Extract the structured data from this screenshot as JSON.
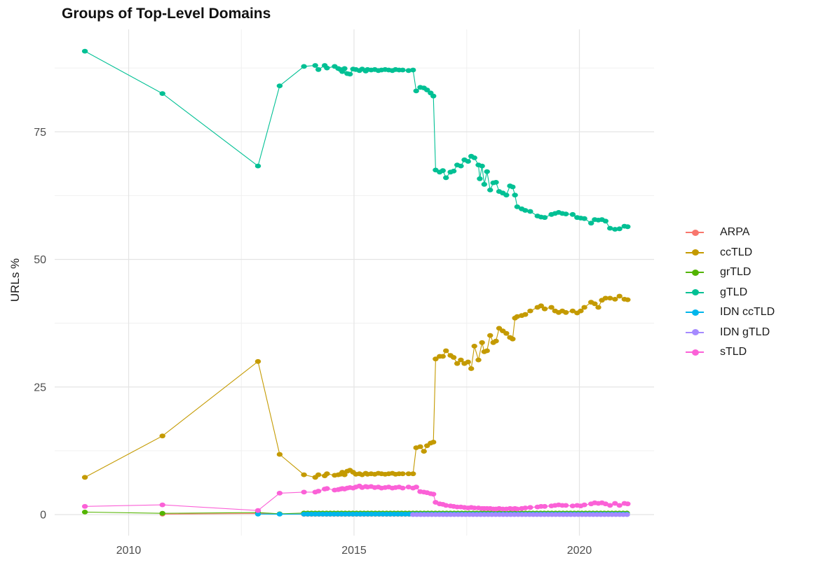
{
  "chart_data": {
    "type": "scatter",
    "title": "Groups of Top-Level Domains",
    "xlabel": "",
    "ylabel": "URLs %",
    "grid": true,
    "legend_position": "right",
    "xlim": [
      2008.35,
      2021.68
    ],
    "ylim": [
      -4.1,
      95.4
    ],
    "x_ticks": {
      "major": [
        2010,
        2015,
        2020
      ],
      "labels": [
        "2010",
        "2015",
        "2020"
      ],
      "minor": [
        2012.5,
        2017.5
      ]
    },
    "y_ticks": {
      "major": [
        0,
        25,
        50,
        75
      ],
      "labels": [
        "0",
        "25",
        "50",
        "75"
      ],
      "minor": [
        12.5,
        37.5,
        62.5,
        87.5
      ]
    },
    "colors": {
      "major_grid": "#e4e4e4",
      "minor_grid": "#f0f0f0",
      "tick_label": "#4d4d4d",
      "title": "#111111",
      "axis_title": "#1a1a1a"
    },
    "series": [
      {
        "name": "ARPA",
        "color": "#F8766D",
        "points": [
          [
            2010.75,
            0.1
          ],
          [
            2012.87,
            0.2
          ]
        ],
        "flat": {
          "from": 2013.89,
          "to": 2021.07,
          "step": 0.0833,
          "value": 0.05
        }
      },
      {
        "name": "ccTLD",
        "color": "#C49A00",
        "points": [
          [
            2009.03,
            7.3
          ],
          [
            2010.75,
            15.4
          ],
          [
            2012.87,
            30.0
          ],
          [
            2013.35,
            11.8
          ],
          [
            2013.89,
            7.8
          ],
          [
            2014.14,
            7.3
          ],
          [
            2014.21,
            7.8
          ],
          [
            2014.35,
            7.6
          ],
          [
            2014.4,
            8.0
          ],
          [
            2014.57,
            7.7
          ],
          [
            2014.65,
            7.8
          ],
          [
            2014.7,
            7.9
          ],
          [
            2014.74,
            8.3
          ],
          [
            2014.79,
            7.8
          ],
          [
            2014.85,
            8.5
          ],
          [
            2014.91,
            8.7
          ],
          [
            2014.98,
            8.3
          ],
          [
            2015.04,
            7.9
          ],
          [
            2015.12,
            8.0
          ],
          [
            2015.18,
            7.8
          ],
          [
            2015.26,
            8.1
          ],
          [
            2015.3,
            7.9
          ],
          [
            2015.38,
            8.0
          ],
          [
            2015.46,
            7.9
          ],
          [
            2015.54,
            8.1
          ],
          [
            2015.61,
            8.0
          ],
          [
            2015.69,
            7.9
          ],
          [
            2015.77,
            8.0
          ],
          [
            2015.85,
            8.1
          ],
          [
            2015.92,
            7.9
          ],
          [
            2016.0,
            8.0
          ],
          [
            2016.08,
            8.0
          ],
          [
            2016.21,
            8.0
          ],
          [
            2016.31,
            8.0
          ],
          [
            2016.38,
            13.1
          ],
          [
            2016.47,
            13.3
          ],
          [
            2016.55,
            12.4
          ],
          [
            2016.62,
            13.5
          ],
          [
            2016.7,
            14.0
          ],
          [
            2016.76,
            14.2
          ],
          [
            2016.81,
            30.5
          ],
          [
            2016.9,
            31.0
          ],
          [
            2016.97,
            31.0
          ],
          [
            2017.04,
            32.1
          ],
          [
            2017.14,
            31.2
          ],
          [
            2017.21,
            30.8
          ],
          [
            2017.29,
            29.6
          ],
          [
            2017.37,
            30.3
          ],
          [
            2017.45,
            29.6
          ],
          [
            2017.53,
            29.9
          ],
          [
            2017.6,
            28.6
          ],
          [
            2017.67,
            33.0
          ],
          [
            2017.76,
            30.3
          ],
          [
            2017.84,
            33.7
          ],
          [
            2017.89,
            31.9
          ],
          [
            2017.95,
            32.1
          ],
          [
            2018.02,
            35.1
          ],
          [
            2018.09,
            33.7
          ],
          [
            2018.15,
            34.0
          ],
          [
            2018.22,
            36.5
          ],
          [
            2018.3,
            36.0
          ],
          [
            2018.38,
            35.5
          ],
          [
            2018.46,
            34.7
          ],
          [
            2018.52,
            34.4
          ],
          [
            2018.57,
            38.5
          ],
          [
            2018.62,
            38.8
          ],
          [
            2018.72,
            39.0
          ],
          [
            2018.8,
            39.2
          ],
          [
            2018.91,
            39.9
          ],
          [
            2019.07,
            40.6
          ],
          [
            2019.15,
            40.9
          ],
          [
            2019.23,
            40.3
          ],
          [
            2019.38,
            40.6
          ],
          [
            2019.46,
            39.9
          ],
          [
            2019.54,
            39.6
          ],
          [
            2019.62,
            39.9
          ],
          [
            2019.7,
            39.6
          ],
          [
            2019.85,
            39.9
          ],
          [
            2019.95,
            39.5
          ],
          [
            2020.03,
            39.9
          ],
          [
            2020.11,
            40.6
          ],
          [
            2020.26,
            41.6
          ],
          [
            2020.34,
            41.3
          ],
          [
            2020.42,
            40.6
          ],
          [
            2020.5,
            42.0
          ],
          [
            2020.58,
            42.4
          ],
          [
            2020.68,
            42.4
          ],
          [
            2020.79,
            42.2
          ],
          [
            2020.89,
            42.8
          ],
          [
            2021.0,
            42.2
          ],
          [
            2021.07,
            42.1
          ]
        ]
      },
      {
        "name": "grTLD",
        "color": "#53B400",
        "points": [
          [
            2009.03,
            0.5
          ],
          [
            2010.75,
            0.25
          ],
          [
            2012.87,
            0.4
          ],
          [
            2013.35,
            0.15
          ]
        ],
        "flat": {
          "from": 2013.89,
          "to": 2021.07,
          "step": 0.0833,
          "value": 0.3
        }
      },
      {
        "name": "gTLD",
        "color": "#00C094",
        "points": [
          [
            2009.03,
            90.8
          ],
          [
            2010.75,
            82.5
          ],
          [
            2012.87,
            68.3
          ],
          [
            2013.35,
            84.0
          ],
          [
            2013.89,
            87.8
          ],
          [
            2014.14,
            88.0
          ],
          [
            2014.21,
            87.2
          ],
          [
            2014.35,
            88.0
          ],
          [
            2014.4,
            87.5
          ],
          [
            2014.57,
            87.8
          ],
          [
            2014.65,
            87.4
          ],
          [
            2014.7,
            87.2
          ],
          [
            2014.74,
            86.8
          ],
          [
            2014.79,
            87.4
          ],
          [
            2014.85,
            86.4
          ],
          [
            2014.91,
            86.3
          ],
          [
            2014.98,
            87.3
          ],
          [
            2015.04,
            87.2
          ],
          [
            2015.12,
            87.0
          ],
          [
            2015.18,
            87.3
          ],
          [
            2015.26,
            86.9
          ],
          [
            2015.3,
            87.2
          ],
          [
            2015.38,
            87.1
          ],
          [
            2015.46,
            87.2
          ],
          [
            2015.54,
            87.0
          ],
          [
            2015.61,
            87.1
          ],
          [
            2015.69,
            87.2
          ],
          [
            2015.77,
            87.1
          ],
          [
            2015.85,
            87.0
          ],
          [
            2015.92,
            87.2
          ],
          [
            2016.0,
            87.1
          ],
          [
            2016.08,
            87.1
          ],
          [
            2016.21,
            87.0
          ],
          [
            2016.31,
            87.1
          ],
          [
            2016.38,
            83.0
          ],
          [
            2016.47,
            83.7
          ],
          [
            2016.55,
            83.6
          ],
          [
            2016.62,
            83.2
          ],
          [
            2016.7,
            82.6
          ],
          [
            2016.76,
            82.0
          ],
          [
            2016.81,
            67.5
          ],
          [
            2016.9,
            67.1
          ],
          [
            2016.97,
            67.4
          ],
          [
            2017.04,
            66.0
          ],
          [
            2017.14,
            67.1
          ],
          [
            2017.21,
            67.3
          ],
          [
            2017.29,
            68.5
          ],
          [
            2017.37,
            68.3
          ],
          [
            2017.45,
            69.5
          ],
          [
            2017.53,
            69.2
          ],
          [
            2017.6,
            70.2
          ],
          [
            2017.67,
            69.9
          ],
          [
            2017.76,
            68.5
          ],
          [
            2017.79,
            65.8
          ],
          [
            2017.84,
            68.3
          ],
          [
            2017.89,
            64.7
          ],
          [
            2017.95,
            67.2
          ],
          [
            2018.02,
            63.6
          ],
          [
            2018.09,
            65.0
          ],
          [
            2018.15,
            65.1
          ],
          [
            2018.22,
            63.3
          ],
          [
            2018.3,
            63.0
          ],
          [
            2018.38,
            62.6
          ],
          [
            2018.46,
            64.4
          ],
          [
            2018.52,
            64.2
          ],
          [
            2018.57,
            62.6
          ],
          [
            2018.62,
            60.3
          ],
          [
            2018.72,
            59.9
          ],
          [
            2018.8,
            59.6
          ],
          [
            2018.91,
            59.4
          ],
          [
            2019.07,
            58.5
          ],
          [
            2019.15,
            58.3
          ],
          [
            2019.23,
            58.2
          ],
          [
            2019.38,
            58.8
          ],
          [
            2019.46,
            59.0
          ],
          [
            2019.54,
            59.2
          ],
          [
            2019.62,
            59.0
          ],
          [
            2019.7,
            58.9
          ],
          [
            2019.85,
            58.8
          ],
          [
            2019.95,
            58.2
          ],
          [
            2020.03,
            58.1
          ],
          [
            2020.11,
            58.0
          ],
          [
            2020.26,
            57.1
          ],
          [
            2020.34,
            57.8
          ],
          [
            2020.42,
            57.7
          ],
          [
            2020.5,
            57.8
          ],
          [
            2020.58,
            57.5
          ],
          [
            2020.68,
            56.1
          ],
          [
            2020.79,
            55.9
          ],
          [
            2020.89,
            56.0
          ],
          [
            2021.0,
            56.5
          ],
          [
            2021.07,
            56.4
          ]
        ]
      },
      {
        "name": "IDN ccTLD",
        "color": "#00B6EB",
        "points": [
          [
            2012.87,
            0.1
          ],
          [
            2013.35,
            0.08
          ]
        ],
        "flat": {
          "from": 2013.89,
          "to": 2021.07,
          "step": 0.0833,
          "value": 0.1
        }
      },
      {
        "name": "IDN gTLD",
        "color": "#A58AFF",
        "points": [],
        "flat": {
          "from": 2016.31,
          "to": 2021.07,
          "step": 0.0833,
          "value": 0.0
        }
      },
      {
        "name": "sTLD",
        "color": "#FB61D7",
        "points": [
          [
            2009.03,
            1.6
          ],
          [
            2010.75,
            1.9
          ],
          [
            2012.87,
            0.8
          ],
          [
            2013.35,
            4.2
          ],
          [
            2013.89,
            4.4
          ],
          [
            2014.14,
            4.4
          ],
          [
            2014.21,
            4.6
          ],
          [
            2014.35,
            5.0
          ],
          [
            2014.4,
            5.1
          ],
          [
            2014.57,
            4.8
          ],
          [
            2014.65,
            4.9
          ],
          [
            2014.7,
            5.0
          ],
          [
            2014.74,
            5.1
          ],
          [
            2014.79,
            5.0
          ],
          [
            2014.85,
            5.2
          ],
          [
            2014.91,
            5.3
          ],
          [
            2014.98,
            5.2
          ],
          [
            2015.04,
            5.4
          ],
          [
            2015.12,
            5.6
          ],
          [
            2015.18,
            5.3
          ],
          [
            2015.26,
            5.5
          ],
          [
            2015.3,
            5.4
          ],
          [
            2015.38,
            5.5
          ],
          [
            2015.46,
            5.3
          ],
          [
            2015.54,
            5.4
          ],
          [
            2015.61,
            5.2
          ],
          [
            2015.69,
            5.3
          ],
          [
            2015.77,
            5.4
          ],
          [
            2015.85,
            5.2
          ],
          [
            2015.92,
            5.3
          ],
          [
            2016.0,
            5.4
          ],
          [
            2016.08,
            5.2
          ],
          [
            2016.21,
            5.4
          ],
          [
            2016.31,
            5.2
          ],
          [
            2016.38,
            5.4
          ],
          [
            2016.47,
            4.5
          ],
          [
            2016.55,
            4.4
          ],
          [
            2016.62,
            4.3
          ],
          [
            2016.7,
            4.1
          ],
          [
            2016.76,
            4.0
          ],
          [
            2016.81,
            2.4
          ],
          [
            2016.9,
            2.1
          ],
          [
            2016.97,
            2.0
          ],
          [
            2017.04,
            1.8
          ],
          [
            2017.14,
            1.7
          ],
          [
            2017.21,
            1.6
          ],
          [
            2017.29,
            1.5
          ],
          [
            2017.37,
            1.5
          ],
          [
            2017.45,
            1.4
          ],
          [
            2017.53,
            1.3
          ],
          [
            2017.6,
            1.4
          ],
          [
            2017.67,
            1.3
          ],
          [
            2017.76,
            1.3
          ],
          [
            2017.84,
            1.2
          ],
          [
            2017.89,
            1.2
          ],
          [
            2017.95,
            1.2
          ],
          [
            2018.02,
            1.2
          ],
          [
            2018.09,
            1.1
          ],
          [
            2018.15,
            1.1
          ],
          [
            2018.22,
            1.2
          ],
          [
            2018.3,
            1.1
          ],
          [
            2018.38,
            1.1
          ],
          [
            2018.46,
            1.2
          ],
          [
            2018.52,
            1.1
          ],
          [
            2018.57,
            1.2
          ],
          [
            2018.62,
            1.1
          ],
          [
            2018.72,
            1.2
          ],
          [
            2018.8,
            1.3
          ],
          [
            2018.91,
            1.4
          ],
          [
            2019.07,
            1.5
          ],
          [
            2019.15,
            1.6
          ],
          [
            2019.23,
            1.6
          ],
          [
            2019.38,
            1.7
          ],
          [
            2019.46,
            1.8
          ],
          [
            2019.54,
            1.9
          ],
          [
            2019.62,
            1.8
          ],
          [
            2019.7,
            1.8
          ],
          [
            2019.85,
            1.7
          ],
          [
            2019.95,
            1.8
          ],
          [
            2020.03,
            1.7
          ],
          [
            2020.11,
            1.9
          ],
          [
            2020.26,
            2.1
          ],
          [
            2020.34,
            2.3
          ],
          [
            2020.42,
            2.2
          ],
          [
            2020.5,
            2.3
          ],
          [
            2020.58,
            2.1
          ],
          [
            2020.68,
            1.8
          ],
          [
            2020.79,
            2.2
          ],
          [
            2020.89,
            1.8
          ],
          [
            2021.0,
            2.2
          ],
          [
            2021.07,
            2.1
          ]
        ]
      }
    ]
  }
}
